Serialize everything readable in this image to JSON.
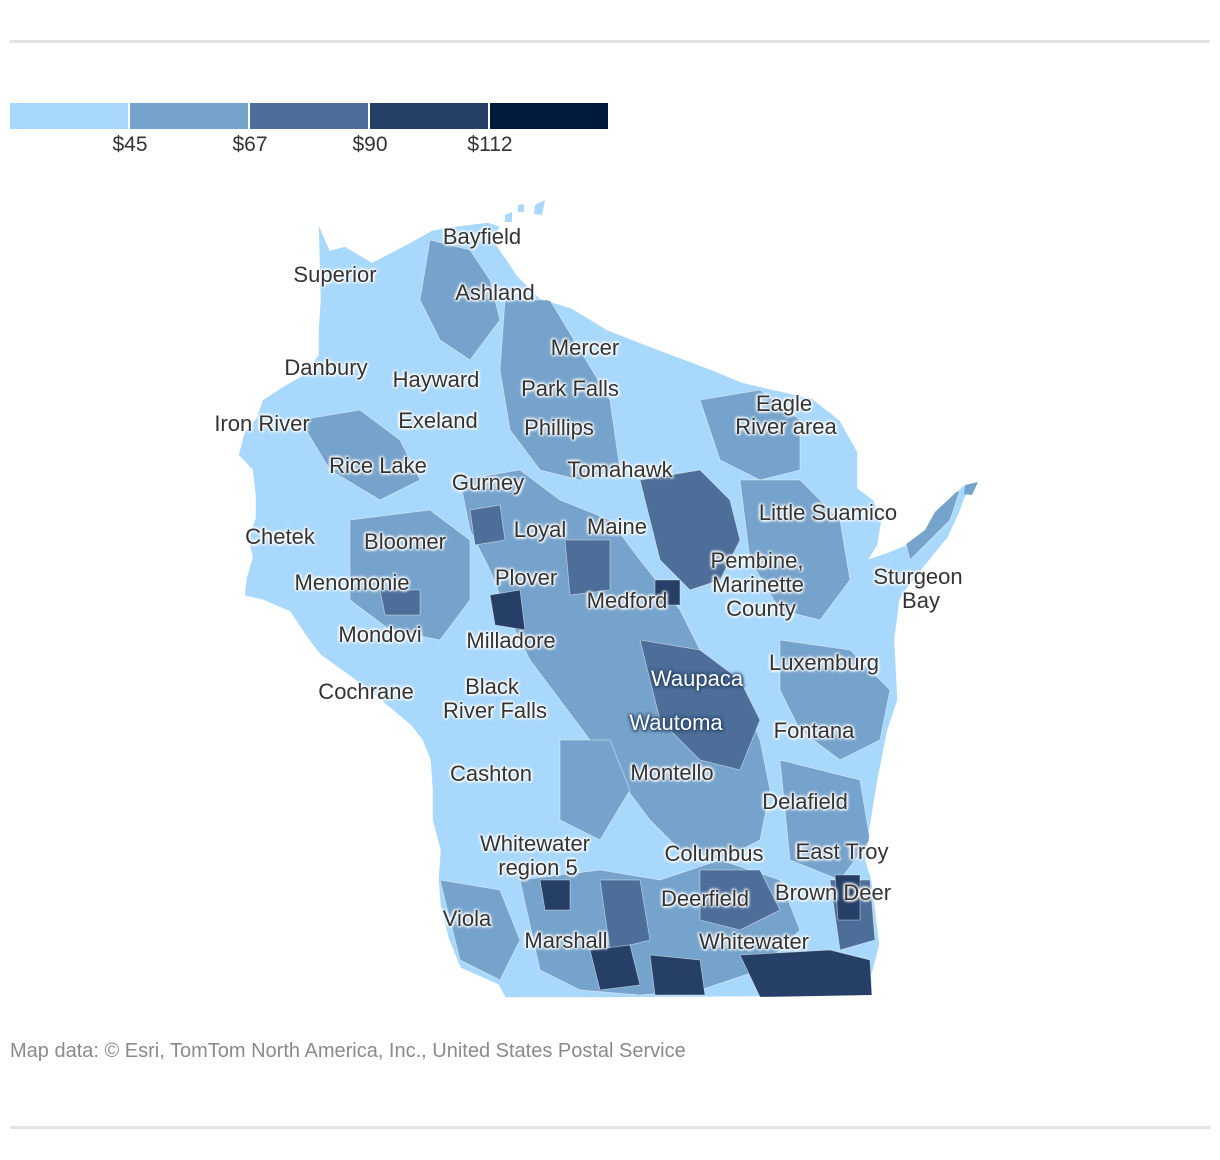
{
  "legend": {
    "colors": [
      "#a8d8fc",
      "#75a3cb",
      "#4c6e99",
      "#263f66",
      "#001a3d"
    ],
    "ticks": [
      "$45",
      "$67",
      "$90",
      "$112"
    ]
  },
  "map": {
    "state": "Wisconsin",
    "labels": {
      "bayfield": "Bayfield",
      "superior": "Superior",
      "ashland": "Ashland",
      "mercer": "Mercer",
      "danbury": "Danbury",
      "hayward": "Hayward",
      "park_falls": "Park Falls",
      "eagle_river_1": "Eagle",
      "eagle_river_2": "River area",
      "iron_river": "Iron River",
      "exeland": "Exeland",
      "phillips": "Phillips",
      "rice_lake": "Rice Lake",
      "tomahawk": "Tomahawk",
      "gurney": "Gurney",
      "little_suamico": "Little Suamico",
      "chetek": "Chetek",
      "bloomer": "Bloomer",
      "loyal": "Loyal",
      "maine": "Maine",
      "pembine_1": "Pembine,",
      "pembine_2": "Marinette",
      "pembine_3": "County",
      "sturgeon_bay_1": "Sturgeon",
      "sturgeon_bay_2": "Bay",
      "menomonie": "Menomonie",
      "plover": "Plover",
      "medford": "Medford",
      "mondovi": "Mondovi",
      "milladore": "Milladore",
      "luxemburg": "Luxemburg",
      "waupaca": "Waupaca",
      "cochrane": "Cochrane",
      "black_river_falls_1": "Black",
      "black_river_falls_2": "River Falls",
      "wautoma": "Wautoma",
      "fontana": "Fontana",
      "cashton": "Cashton",
      "montello": "Montello",
      "delafield": "Delafield",
      "whitewater_region_1": "Whitewater",
      "whitewater_region_2": "region 5",
      "columbus": "Columbus",
      "east_troy": "East Troy",
      "brown_deer": "Brown Deer",
      "deerfield": "Deerfield",
      "viola": "Viola",
      "marshall": "Marshall",
      "whitewater": "Whitewater"
    }
  },
  "credit": "Map data: © Esri, TomTom North America, Inc., United States Postal Service"
}
